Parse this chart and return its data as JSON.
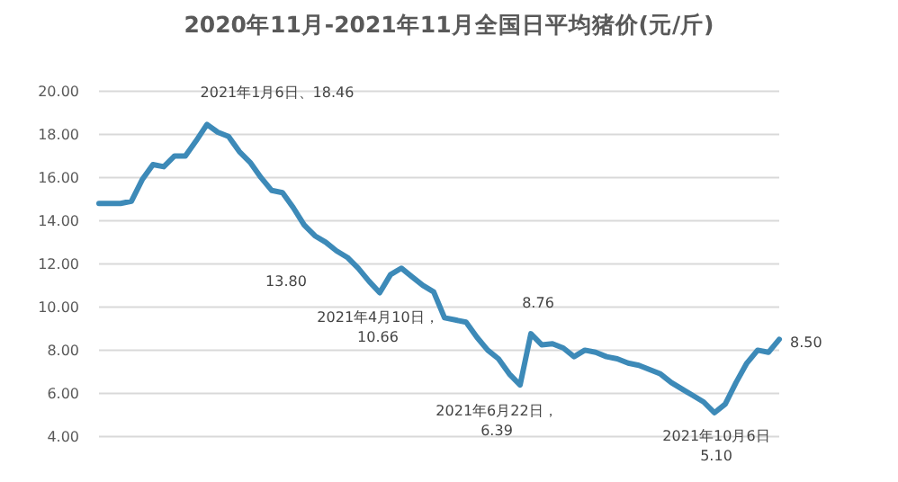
{
  "chart_data": {
    "type": "line",
    "title": "2020年11月-2021年11月全国日平均猪价(元/斤)",
    "categories": [
      null,
      null,
      null,
      null,
      null,
      null,
      null,
      null,
      null,
      null,
      null,
      null,
      null,
      null,
      null,
      null,
      null,
      null,
      null,
      null,
      null,
      null,
      null,
      null,
      null,
      null,
      null,
      null,
      null,
      null,
      null,
      null,
      null,
      null,
      null,
      null,
      null,
      null,
      null,
      null,
      null,
      null,
      null,
      null,
      null,
      null,
      null,
      null,
      null,
      null,
      null,
      null,
      null,
      null,
      null,
      null,
      null,
      null,
      null,
      null,
      null,
      null,
      null,
      null
    ],
    "series": [
      {
        "color": "#3d8ab8",
        "values": [
          14.8,
          14.8,
          14.8,
          14.9,
          15.9,
          16.6,
          16.5,
          17.0,
          17.0,
          17.7,
          18.46,
          18.1,
          17.9,
          17.2,
          16.7,
          16.0,
          15.4,
          15.3,
          14.6,
          13.8,
          13.3,
          13.0,
          12.6,
          12.3,
          11.8,
          11.2,
          10.66,
          11.5,
          11.8,
          11.4,
          11.0,
          10.7,
          9.5,
          9.4,
          9.3,
          8.6,
          8.0,
          7.6,
          6.9,
          6.39,
          8.76,
          8.25,
          8.3,
          8.1,
          7.7,
          8.0,
          7.9,
          7.7,
          7.6,
          7.4,
          7.3,
          7.1,
          6.9,
          6.5,
          6.2,
          5.9,
          5.6,
          5.1,
          5.5,
          6.5,
          7.4,
          8.0,
          7.9,
          8.5
        ]
      }
    ],
    "ylim": [
      4,
      20
    ],
    "yticks": [
      {
        "value": 4,
        "label": "4.00"
      },
      {
        "value": 6,
        "label": "6.00"
      },
      {
        "value": 8,
        "label": "8.00"
      },
      {
        "value": 10,
        "label": "10.00"
      },
      {
        "value": 12,
        "label": "12.00"
      },
      {
        "value": 14,
        "label": "14.00"
      },
      {
        "value": 16,
        "label": "16.00"
      },
      {
        "value": 18,
        "label": "18.00"
      },
      {
        "value": 20,
        "label": "20.00"
      }
    ],
    "grid": "y",
    "tick_labels": "y",
    "annotations": [
      "2021年1月6日、18.46",
      "13.80",
      "2021年4月10日，10.66",
      "2021年6月22日，6.39",
      "8.76",
      "2021年10月6日5.10",
      "8.50"
    ]
  }
}
